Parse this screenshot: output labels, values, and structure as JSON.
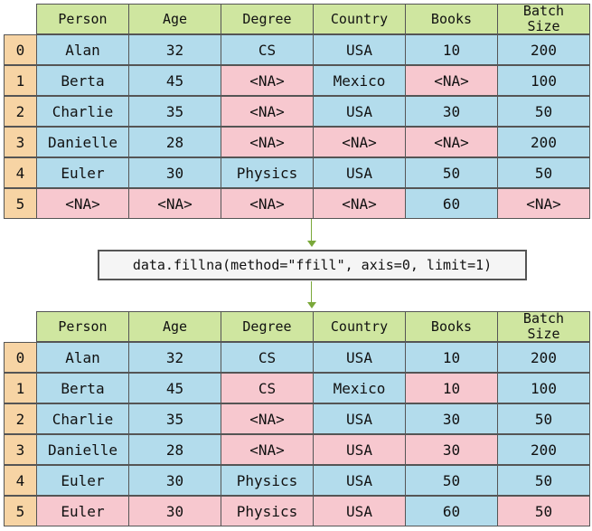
{
  "columns": {
    "person": "Person",
    "age": "Age",
    "degree": "Degree",
    "country": "Country",
    "books": "Books",
    "batch_line1": "Batch",
    "batch_line2": "Size"
  },
  "code": "data.fillna(method=\"ffill\", axis=0, limit=1)",
  "colors": {
    "header": "#cfe6a0",
    "index": "#f7d4a4",
    "present": "#b3dcec",
    "missing": "#f7c8cf",
    "arrow": "#7aa83a"
  },
  "before": {
    "rows": [
      {
        "index": "0",
        "cells": [
          {
            "v": "Alan",
            "na": false
          },
          {
            "v": "32",
            "na": false
          },
          {
            "v": "CS",
            "na": false
          },
          {
            "v": "USA",
            "na": false
          },
          {
            "v": "10",
            "na": false
          },
          {
            "v": "200",
            "na": false
          }
        ]
      },
      {
        "index": "1",
        "cells": [
          {
            "v": "Berta",
            "na": false
          },
          {
            "v": "45",
            "na": false
          },
          {
            "v": "<NA>",
            "na": true
          },
          {
            "v": "Mexico",
            "na": false
          },
          {
            "v": "<NA>",
            "na": true
          },
          {
            "v": "100",
            "na": false
          }
        ]
      },
      {
        "index": "2",
        "cells": [
          {
            "v": "Charlie",
            "na": false
          },
          {
            "v": "35",
            "na": false
          },
          {
            "v": "<NA>",
            "na": true
          },
          {
            "v": "USA",
            "na": false
          },
          {
            "v": "30",
            "na": false
          },
          {
            "v": "50",
            "na": false
          }
        ]
      },
      {
        "index": "3",
        "cells": [
          {
            "v": "Danielle",
            "na": false
          },
          {
            "v": "28",
            "na": false
          },
          {
            "v": "<NA>",
            "na": true
          },
          {
            "v": "<NA>",
            "na": true
          },
          {
            "v": "<NA>",
            "na": true
          },
          {
            "v": "200",
            "na": false
          }
        ]
      },
      {
        "index": "4",
        "cells": [
          {
            "v": "Euler",
            "na": false
          },
          {
            "v": "30",
            "na": false
          },
          {
            "v": "Physics",
            "na": false
          },
          {
            "v": "USA",
            "na": false
          },
          {
            "v": "50",
            "na": false
          },
          {
            "v": "50",
            "na": false
          }
        ]
      },
      {
        "index": "5",
        "cells": [
          {
            "v": "<NA>",
            "na": true
          },
          {
            "v": "<NA>",
            "na": true
          },
          {
            "v": "<NA>",
            "na": true
          },
          {
            "v": "<NA>",
            "na": true
          },
          {
            "v": "60",
            "na": false
          },
          {
            "v": "<NA>",
            "na": true
          }
        ]
      }
    ]
  },
  "after": {
    "rows": [
      {
        "index": "0",
        "cells": [
          {
            "v": "Alan",
            "na": false
          },
          {
            "v": "32",
            "na": false
          },
          {
            "v": "CS",
            "na": false
          },
          {
            "v": "USA",
            "na": false
          },
          {
            "v": "10",
            "na": false
          },
          {
            "v": "200",
            "na": false
          }
        ]
      },
      {
        "index": "1",
        "cells": [
          {
            "v": "Berta",
            "na": false
          },
          {
            "v": "45",
            "na": false
          },
          {
            "v": "CS",
            "na": true
          },
          {
            "v": "Mexico",
            "na": false
          },
          {
            "v": "10",
            "na": true
          },
          {
            "v": "100",
            "na": false
          }
        ]
      },
      {
        "index": "2",
        "cells": [
          {
            "v": "Charlie",
            "na": false
          },
          {
            "v": "35",
            "na": false
          },
          {
            "v": "<NA>",
            "na": true
          },
          {
            "v": "USA",
            "na": false
          },
          {
            "v": "30",
            "na": false
          },
          {
            "v": "50",
            "na": false
          }
        ]
      },
      {
        "index": "3",
        "cells": [
          {
            "v": "Danielle",
            "na": false
          },
          {
            "v": "28",
            "na": false
          },
          {
            "v": "<NA>",
            "na": true
          },
          {
            "v": "USA",
            "na": true
          },
          {
            "v": "30",
            "na": true
          },
          {
            "v": "200",
            "na": false
          }
        ]
      },
      {
        "index": "4",
        "cells": [
          {
            "v": "Euler",
            "na": false
          },
          {
            "v": "30",
            "na": false
          },
          {
            "v": "Physics",
            "na": false
          },
          {
            "v": "USA",
            "na": false
          },
          {
            "v": "50",
            "na": false
          },
          {
            "v": "50",
            "na": false
          }
        ]
      },
      {
        "index": "5",
        "cells": [
          {
            "v": "Euler",
            "na": true
          },
          {
            "v": "30",
            "na": true
          },
          {
            "v": "Physics",
            "na": true
          },
          {
            "v": "USA",
            "na": true
          },
          {
            "v": "60",
            "na": false
          },
          {
            "v": "50",
            "na": true
          }
        ]
      }
    ]
  }
}
